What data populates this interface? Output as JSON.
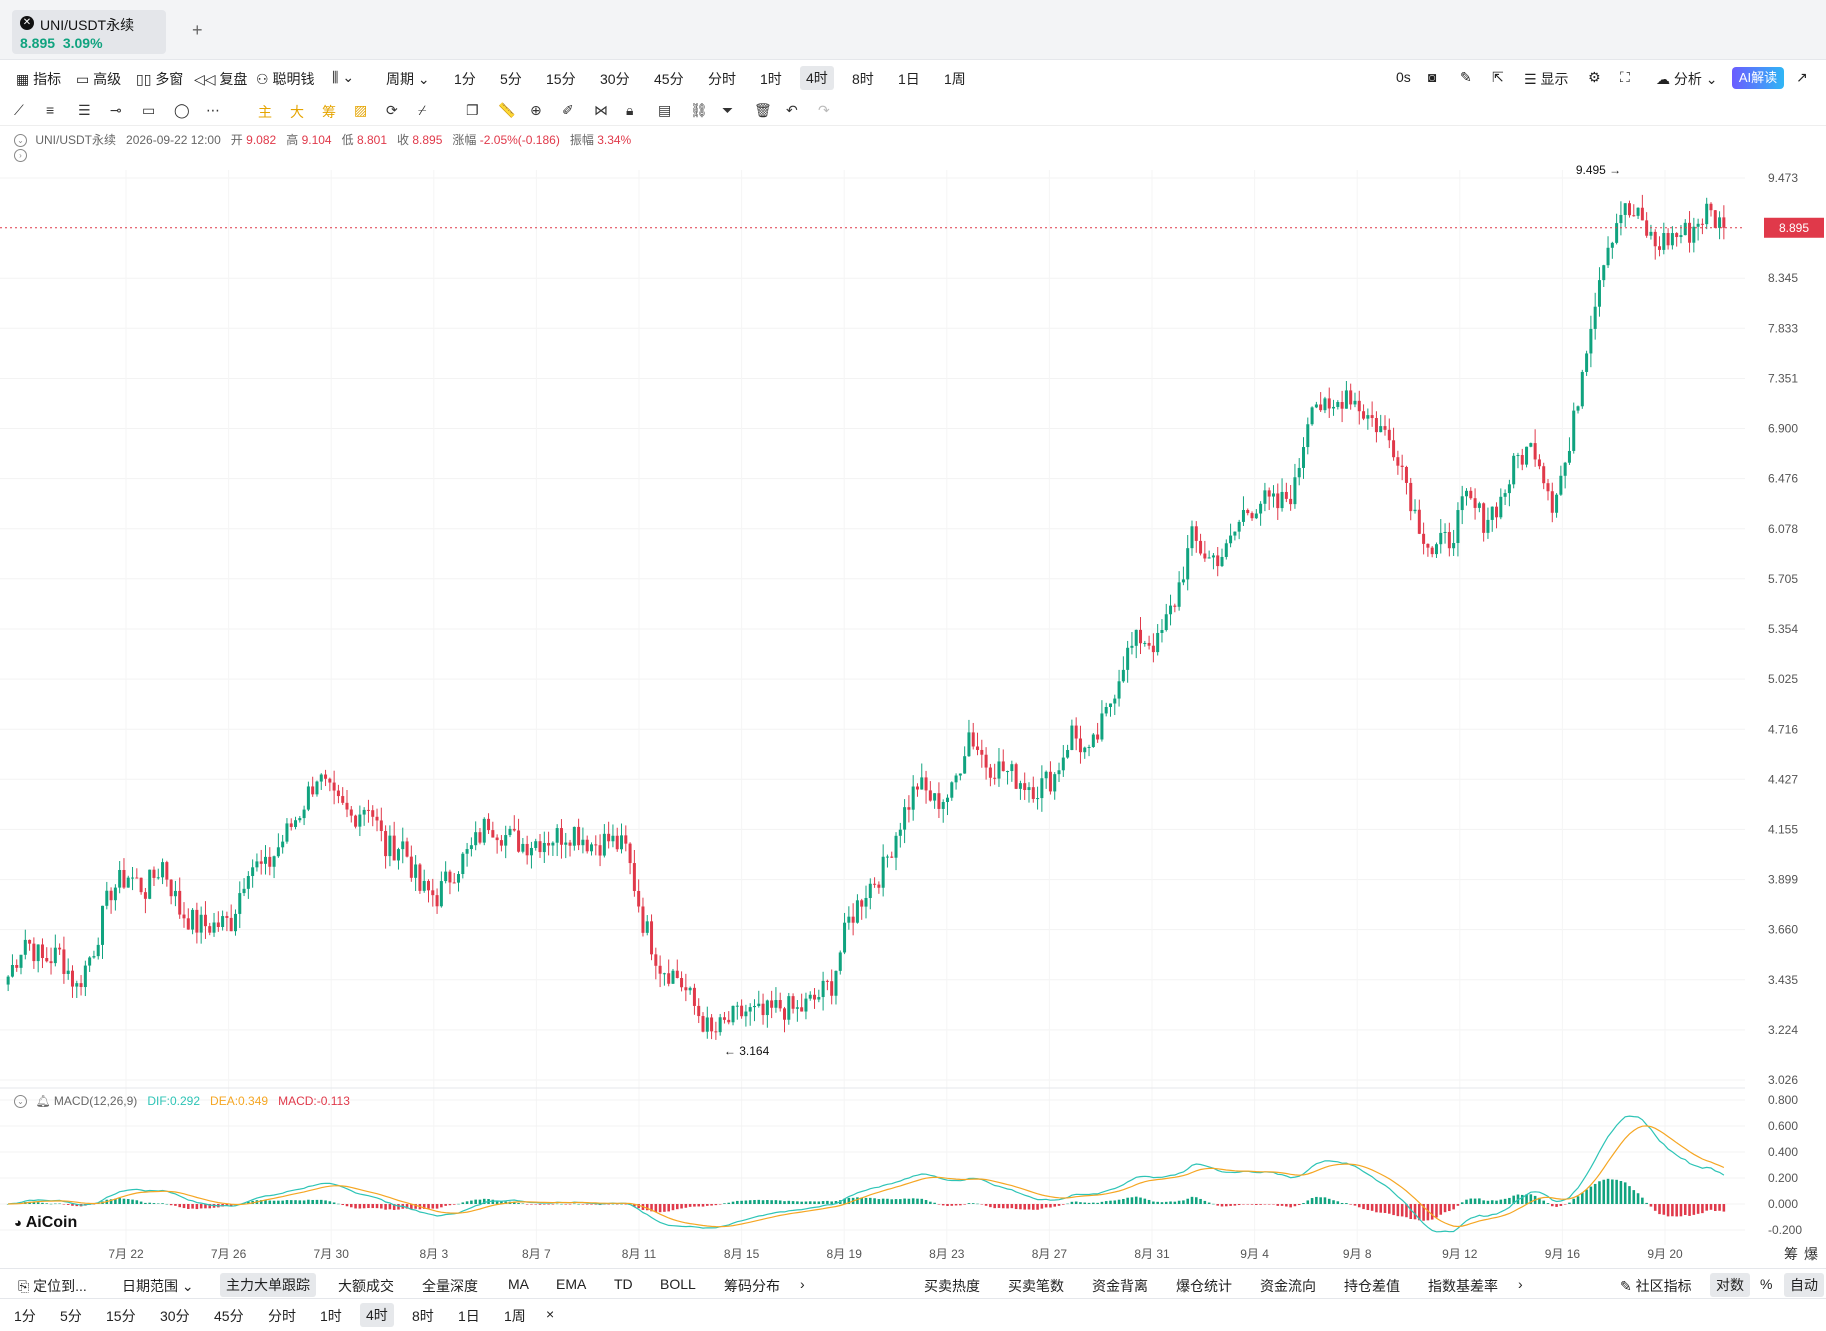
{
  "tab": {
    "title": "UNI/USDT永续",
    "price": "8.895",
    "change": "3.09%"
  },
  "toolbar": {
    "left": [
      "指标",
      "高级",
      "多窗",
      "复盘",
      "聪明钱",
      "周期"
    ],
    "periods": [
      "1分",
      "5分",
      "15分",
      "30分",
      "45分",
      "分时",
      "1时",
      "4时",
      "8时",
      "1日",
      "1周"
    ],
    "active_period": "4时",
    "right": [
      "0s",
      "显示",
      "分析"
    ],
    "ai_label": "AI解读"
  },
  "draw_toolbar": {
    "labels": [
      "主",
      "大",
      "筹"
    ]
  },
  "ohlc": {
    "symbol": "UNI/USDT永续",
    "date": "2026-09-22 12:00",
    "open_label": "开",
    "open": "9.082",
    "high_label": "高",
    "high": "9.104",
    "low_label": "低",
    "low": "8.801",
    "close_label": "收",
    "close": "8.895",
    "change_label": "涨幅",
    "change": "-2.05%(-0.186)",
    "amp_label": "振幅",
    "amp": "3.34%"
  },
  "macd": {
    "label": "MACD(12,26,9)",
    "dif": "DIF:0.292",
    "dea": "DEA:0.349",
    "macd": "MACD:-0.113"
  },
  "brand": "AiCoin",
  "colors": {
    "up": "#10a37f",
    "down": "#e0394a",
    "dif": "#2ec4b6",
    "dea": "#f5a623"
  },
  "chart_data": {
    "type": "candlestick",
    "price_axis_ticks": [
      "9.473",
      "8.345",
      "7.833",
      "7.351",
      "6.900",
      "6.476",
      "6.078",
      "5.705",
      "5.354",
      "5.025",
      "4.716",
      "4.427",
      "4.155",
      "3.899",
      "3.660",
      "3.435",
      "3.224",
      "3.026"
    ],
    "price_tick_values": [
      9.473,
      8.345,
      7.833,
      7.351,
      6.9,
      6.476,
      6.078,
      5.705,
      5.354,
      5.025,
      4.716,
      4.427,
      4.155,
      3.899,
      3.66,
      3.435,
      3.224,
      3.026
    ],
    "scale": "log",
    "last_price": "8.895",
    "max_label": "9.495",
    "min_label": "3.164",
    "x_ticks": [
      "7月 22",
      "7月 26",
      "7月 30",
      "8月 3",
      "8月 7",
      "8月 11",
      "8月 15",
      "8月 19",
      "8月 23",
      "8月 27",
      "8月 31",
      "9月 4",
      "9月 8",
      "9月 12",
      "9月 16",
      "9月 20"
    ],
    "closes": [
      3.45,
      3.62,
      3.52,
      3.55,
      3.4,
      3.58,
      3.85,
      3.92,
      3.85,
      3.98,
      3.75,
      3.68,
      3.68,
      3.7,
      3.98,
      3.95,
      4.1,
      4.25,
      4.45,
      4.3,
      4.22,
      4.3,
      4.05,
      4.08,
      3.85,
      3.82,
      3.95,
      4.05,
      4.2,
      4.12,
      4.08,
      4.1,
      4.12,
      4.15,
      4.08,
      4.1,
      4.05,
      3.7,
      3.5,
      3.45,
      3.32,
      3.2,
      3.26,
      3.3,
      3.28,
      3.32,
      3.3,
      3.35,
      3.42,
      3.7,
      3.85,
      3.95,
      4.2,
      4.4,
      4.3,
      4.35,
      4.7,
      4.52,
      4.48,
      4.42,
      4.38,
      4.45,
      4.7,
      4.55,
      4.8,
      5.15,
      5.3,
      5.25,
      5.55,
      6.0,
      5.85,
      5.9,
      6.2,
      6.3,
      6.25,
      6.4,
      7.2,
      7.0,
      7.25,
      7.05,
      6.9,
      6.7,
      6.2,
      5.9,
      6.0,
      6.3,
      6.15,
      6.3,
      6.65,
      6.75,
      6.3,
      6.7,
      7.7,
      8.6,
      9.1,
      9.0,
      8.7,
      8.8,
      8.85,
      9.08,
      8.895
    ],
    "macd_axis_ticks": [
      "0.800",
      "0.600",
      "0.400",
      "0.200",
      "0.000",
      "-0.200"
    ],
    "macd_tick_values": [
      0.8,
      0.6,
      0.4,
      0.2,
      0,
      -0.2
    ]
  },
  "bottom": {
    "left": [
      "定位到...",
      "日期范围"
    ],
    "indicators": [
      "主力大单跟踪",
      "大额成交",
      "全量深度",
      "MA",
      "EMA",
      "TD",
      "BOLL",
      "筹码分布"
    ],
    "right_indicators": [
      "买卖热度",
      "买卖笔数",
      "资金背离",
      "爆仓统计",
      "资金流向",
      "持仓差值",
      "指数基差率"
    ],
    "right": [
      "社区指标",
      "对数",
      "%",
      "自动"
    ],
    "periods": [
      "1分",
      "5分",
      "15分",
      "30分",
      "45分",
      "分时",
      "1时",
      "4时",
      "8时",
      "1日",
      "1周"
    ],
    "active_period": "4时",
    "corner": [
      "筹",
      "爆"
    ]
  }
}
